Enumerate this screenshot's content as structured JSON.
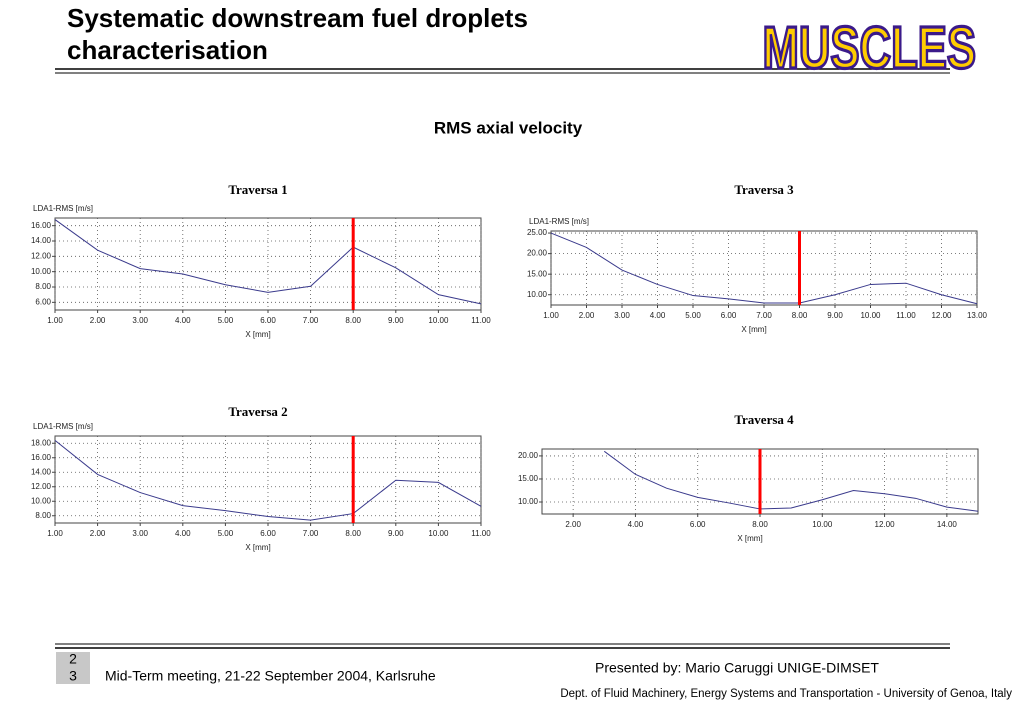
{
  "header": {
    "title_line1": "Systematic downstream fuel droplets",
    "title_line2": "characterisation",
    "logo": "MUSCLES"
  },
  "subtitle": "RMS axial velocity",
  "chart_data": [
    {
      "type": "line",
      "title": "Traversa 1",
      "ylabel": "LDA1-RMS [m/s]",
      "xlabel": "X [mm]",
      "color": "#3a3a8c",
      "marker_line": 8,
      "marker_color": "#ff0000",
      "grid": true,
      "x": [
        1,
        2,
        3,
        4,
        5,
        6,
        7,
        8,
        9,
        10,
        11
      ],
      "values": [
        16.8,
        12.8,
        10.4,
        9.7,
        8.3,
        7.3,
        8.1,
        13.2,
        10.5,
        7.0,
        5.8
      ],
      "xlim": [
        1,
        11
      ],
      "ylim": [
        5,
        17
      ],
      "xticks": [
        {
          "value": 1,
          "label": "1.00"
        },
        {
          "value": 2,
          "label": "2.00"
        },
        {
          "value": 3,
          "label": "3.00"
        },
        {
          "value": 4,
          "label": "4.00"
        },
        {
          "value": 5,
          "label": "5.00"
        },
        {
          "value": 6,
          "label": "6.00"
        },
        {
          "value": 7,
          "label": "7.00"
        },
        {
          "value": 8,
          "label": "8.00"
        },
        {
          "value": 9,
          "label": "9.00"
        },
        {
          "value": 10,
          "label": "10.00"
        },
        {
          "value": 11,
          "label": "11.00"
        }
      ],
      "yticks": [
        {
          "value": 6,
          "label": "6.00"
        },
        {
          "value": 8,
          "label": "8.00"
        },
        {
          "value": 10,
          "label": "10.00"
        },
        {
          "value": 12,
          "label": "12.00"
        },
        {
          "value": 14,
          "label": "14.00"
        },
        {
          "value": 16,
          "label": "16.00"
        }
      ]
    },
    {
      "type": "line",
      "title": "Traversa 3",
      "ylabel": "LDA1-RMS [m/s]",
      "xlabel": "X [mm]",
      "color": "#3a3a8c",
      "marker_line": 8,
      "marker_color": "#ff0000",
      "grid": true,
      "x": [
        1,
        2,
        3,
        4,
        5,
        6,
        7,
        8,
        9,
        10,
        11,
        12,
        13
      ],
      "values": [
        25.0,
        21.5,
        16.0,
        12.5,
        9.8,
        9.0,
        8.0,
        8.0,
        10.0,
        12.5,
        12.8,
        10.0,
        7.8
      ],
      "xlim": [
        1,
        13
      ],
      "ylim": [
        7.5,
        25.5
      ],
      "xticks": [
        {
          "value": 1,
          "label": "1.00"
        },
        {
          "value": 2,
          "label": "2.00"
        },
        {
          "value": 3,
          "label": "3.00"
        },
        {
          "value": 4,
          "label": "4.00"
        },
        {
          "value": 5,
          "label": "5.00"
        },
        {
          "value": 6,
          "label": "6.00"
        },
        {
          "value": 7,
          "label": "7.00"
        },
        {
          "value": 8,
          "label": "8.00"
        },
        {
          "value": 9,
          "label": "9.00"
        },
        {
          "value": 10,
          "label": "10.00"
        },
        {
          "value": 11,
          "label": "11.00"
        },
        {
          "value": 12,
          "label": "12.00"
        },
        {
          "value": 13,
          "label": "13.00"
        }
      ],
      "yticks": [
        {
          "value": 10,
          "label": "10.00"
        },
        {
          "value": 15,
          "label": "15.00"
        },
        {
          "value": 20,
          "label": "20.00"
        },
        {
          "value": 25,
          "label": "25.00"
        }
      ]
    },
    {
      "type": "line",
      "title": "Traversa 2",
      "ylabel": "LDA1-RMS [m/s]",
      "xlabel": "X [mm]",
      "color": "#3a3a8c",
      "marker_line": 8,
      "marker_color": "#ff0000",
      "grid": true,
      "x": [
        1,
        2,
        3,
        4,
        5,
        6,
        7,
        8,
        9,
        10,
        11
      ],
      "values": [
        18.4,
        13.7,
        11.2,
        9.4,
        8.7,
        7.9,
        7.4,
        8.3,
        12.9,
        12.6,
        9.3
      ],
      "xlim": [
        1,
        11
      ],
      "ylim": [
        7,
        19
      ],
      "xticks": [
        {
          "value": 1,
          "label": "1.00"
        },
        {
          "value": 2,
          "label": "2.00"
        },
        {
          "value": 3,
          "label": "3.00"
        },
        {
          "value": 4,
          "label": "4.00"
        },
        {
          "value": 5,
          "label": "5.00"
        },
        {
          "value": 6,
          "label": "6.00"
        },
        {
          "value": 7,
          "label": "7.00"
        },
        {
          "value": 8,
          "label": "8.00"
        },
        {
          "value": 9,
          "label": "9.00"
        },
        {
          "value": 10,
          "label": "10.00"
        },
        {
          "value": 11,
          "label": "11.00"
        }
      ],
      "yticks": [
        {
          "value": 8,
          "label": "8.00"
        },
        {
          "value": 10,
          "label": "10.00"
        },
        {
          "value": 12,
          "label": "12.00"
        },
        {
          "value": 14,
          "label": "14.00"
        },
        {
          "value": 16,
          "label": "16.00"
        },
        {
          "value": 18,
          "label": "18.00"
        }
      ]
    },
    {
      "type": "line",
      "title": "Traversa 4",
      "xlabel": "X [mm]",
      "color": "#3a3a8c",
      "marker_line": 8,
      "marker_color": "#ff0000",
      "grid": true,
      "x": [
        3,
        4,
        5,
        6,
        7,
        8,
        9,
        10,
        11,
        12,
        13,
        14,
        15
      ],
      "values": [
        21.0,
        16.0,
        13.0,
        11.0,
        9.8,
        8.5,
        8.7,
        10.5,
        12.5,
        11.8,
        10.8,
        8.9,
        8.0
      ],
      "xlim": [
        1,
        15
      ],
      "ylim": [
        7.4,
        21.5
      ],
      "xticks": [
        {
          "value": 2,
          "label": "2.00"
        },
        {
          "value": 4,
          "label": "4.00"
        },
        {
          "value": 6,
          "label": "6.00"
        },
        {
          "value": 8,
          "label": "8.00"
        },
        {
          "value": 10,
          "label": "10.00"
        },
        {
          "value": 12,
          "label": "12.00"
        },
        {
          "value": 14,
          "label": "14.00"
        }
      ],
      "yticks": [
        {
          "value": 10,
          "label": "10.00"
        },
        {
          "value": 15,
          "label": "15.00"
        },
        {
          "value": 20,
          "label": "20.00"
        }
      ]
    }
  ],
  "footer": {
    "page_line1": "2",
    "page_line2": "3",
    "meeting": "Mid-Term meeting, 21-22 September 2004, Karlsruhe",
    "presenter": "Presented by: Mario Caruggi  UNIGE-DIMSET",
    "dept": "Dept. of Fluid Machinery, Energy Systems and Transportation - University of Genoa, Italy"
  }
}
